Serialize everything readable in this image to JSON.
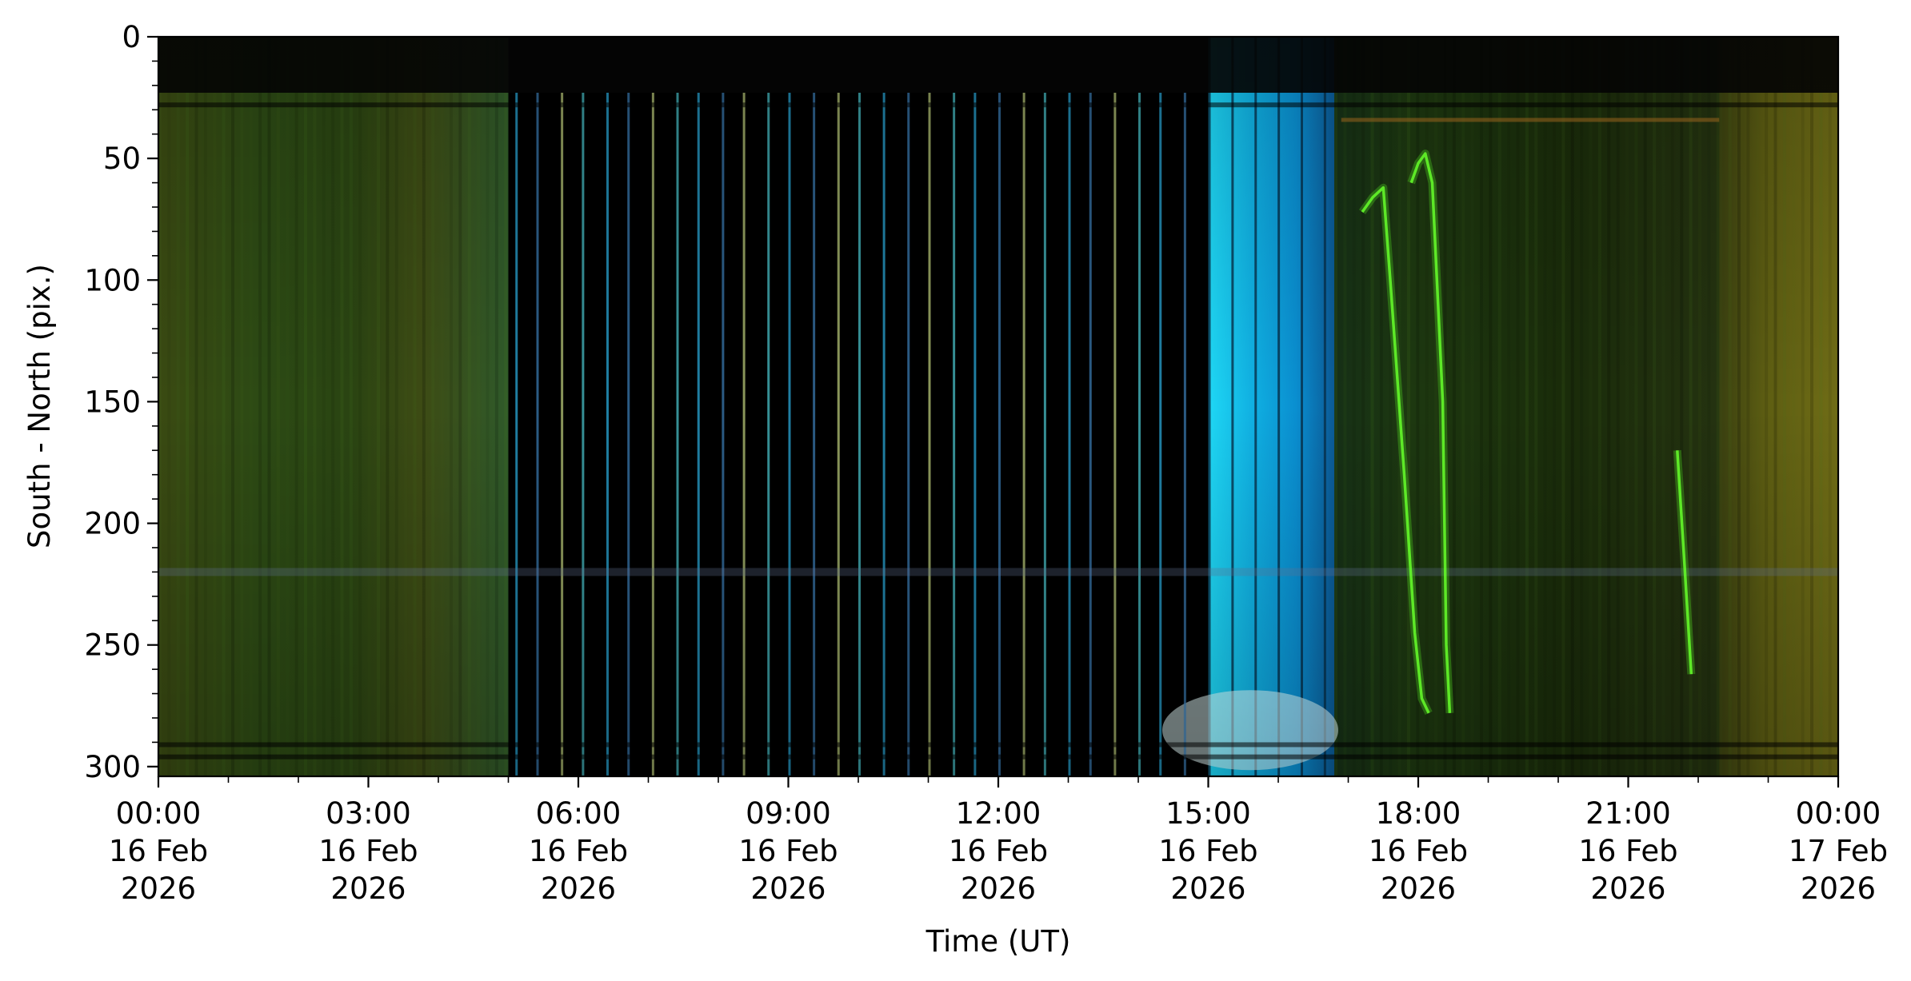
{
  "chart_data": {
    "type": "heatmap",
    "title": "",
    "xlabel": "Time (UT)",
    "ylabel": "South - North (pix.)",
    "x_range": [
      "2026-02-16T00:00",
      "2026-02-17T00:00"
    ],
    "ylim": [
      0,
      304
    ],
    "y_inverted": true,
    "grid": false,
    "legend": "none",
    "y_ticks": [
      0,
      50,
      100,
      150,
      200,
      250,
      300
    ],
    "x_ticks": [
      {
        "time": "00:00",
        "date": "16 Feb",
        "year": "2026"
      },
      {
        "time": "03:00",
        "date": "16 Feb",
        "year": "2026"
      },
      {
        "time": "06:00",
        "date": "16 Feb",
        "year": "2026"
      },
      {
        "time": "09:00",
        "date": "16 Feb",
        "year": "2026"
      },
      {
        "time": "12:00",
        "date": "16 Feb",
        "year": "2026"
      },
      {
        "time": "15:00",
        "date": "16 Feb",
        "year": "2026"
      },
      {
        "time": "18:00",
        "date": "16 Feb",
        "year": "2026"
      },
      {
        "time": "21:00",
        "date": "16 Feb",
        "year": "2026"
      },
      {
        "time": "00:00",
        "date": "17 Feb",
        "year": "2026"
      }
    ],
    "segments": [
      {
        "start_hour": 0.0,
        "end_hour": 5.0,
        "appearance": "green-olive aurora glow",
        "color": "#2f4a14"
      },
      {
        "start_hour": 5.0,
        "end_hour": 15.0,
        "appearance": "dark with periodic thin cyan/blue/yellow streaks",
        "color": "#000000"
      },
      {
        "start_hour": 15.0,
        "end_hour": 16.8,
        "appearance": "bright cyan twilight bands",
        "color": "#14b4e0"
      },
      {
        "start_hour": 16.8,
        "end_hour": 22.3,
        "appearance": "dark green with bright green aurora arcs",
        "color": "#1c2c0c"
      },
      {
        "start_hour": 22.3,
        "end_hour": 24.0,
        "appearance": "olive-yellow aurora glow",
        "color": "#6a6a12"
      }
    ],
    "streak_hours": [
      5.1,
      5.4,
      5.75,
      6.05,
      6.4,
      6.7,
      7.05,
      7.4,
      7.7,
      8.05,
      8.35,
      8.7,
      9.0,
      9.35,
      9.7,
      10.0,
      10.35,
      10.7,
      11.0,
      11.35,
      11.65,
      12.0,
      12.35,
      12.65,
      13.0,
      13.3,
      13.65,
      14.0,
      14.3,
      14.65
    ],
    "aurora_arcs": [
      {
        "x_hours": [
          17.2,
          17.35,
          17.5,
          17.6,
          17.8,
          17.95,
          18.05,
          18.15
        ],
        "y_pix": [
          72,
          66,
          62,
          100,
          180,
          245,
          272,
          278
        ]
      },
      {
        "x_hours": [
          17.9,
          18.0,
          18.1,
          18.2,
          18.35,
          18.4,
          18.45
        ],
        "y_pix": [
          60,
          52,
          48,
          60,
          150,
          250,
          278
        ]
      },
      {
        "x_hours": [
          21.7,
          21.8,
          21.9
        ],
        "y_pix": [
          170,
          215,
          262
        ]
      }
    ]
  }
}
